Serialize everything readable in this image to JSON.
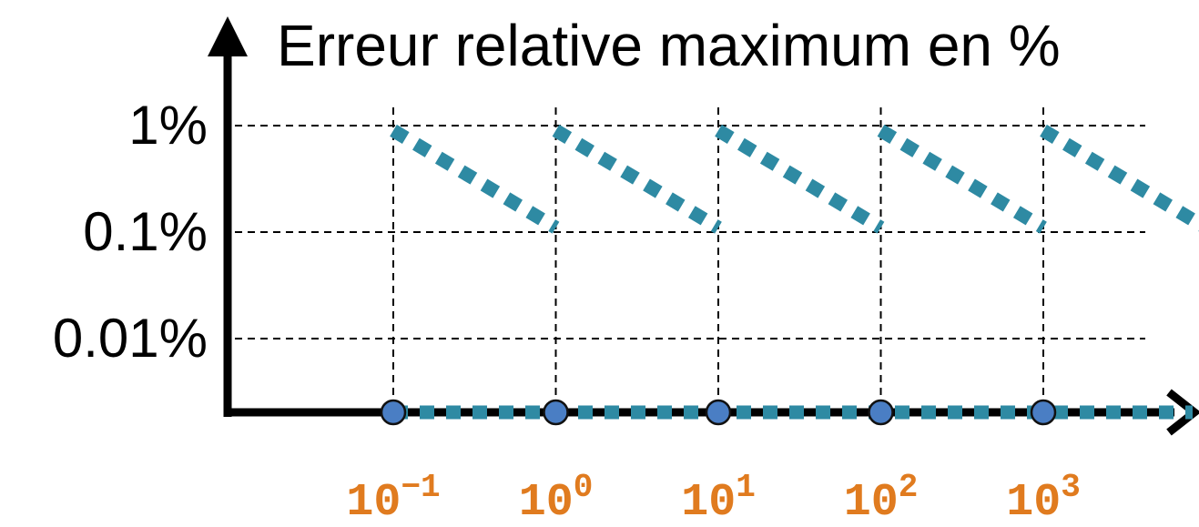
{
  "chart_data": {
    "type": "line",
    "title": "",
    "ylabel": "Erreur relative maximum  en %",
    "xlabel": "",
    "x_scale": "log",
    "y_scale": "log",
    "grid": true,
    "y_ticks": [
      {
        "value": 1,
        "label": "1%"
      },
      {
        "value": 0.1,
        "label": "0.1%"
      },
      {
        "value": 0.01,
        "label": "0.01%"
      }
    ],
    "x_ticks": [
      {
        "value": 0.1,
        "base": "10",
        "exp": "−1"
      },
      {
        "value": 1,
        "base": "10",
        "exp": "0"
      },
      {
        "value": 10,
        "base": "10",
        "exp": "1"
      },
      {
        "value": 100,
        "base": "10",
        "exp": "2"
      },
      {
        "value": 1000,
        "base": "10",
        "exp": "3"
      }
    ],
    "series": [
      {
        "style": "dotted",
        "segments": [
          [
            [
              0.1,
              0.9
            ],
            [
              1,
              0.11
            ]
          ],
          [
            [
              1,
              0.9
            ],
            [
              10,
              0.11
            ]
          ],
          [
            [
              10,
              0.9
            ],
            [
              100,
              0.11
            ]
          ],
          [
            [
              100,
              0.9
            ],
            [
              1000,
              0.11
            ]
          ],
          [
            [
              1000,
              0.9
            ],
            [
              10000,
              0.11
            ]
          ]
        ]
      }
    ],
    "markers_on_axis": [
      0.1,
      1,
      10,
      100,
      1000
    ],
    "colors": {
      "series": "#2e8aa3",
      "marker_fill": "#4a7ec4",
      "tick_label": "#e07b1f",
      "axis": "#000000",
      "grid": "#000000"
    }
  }
}
